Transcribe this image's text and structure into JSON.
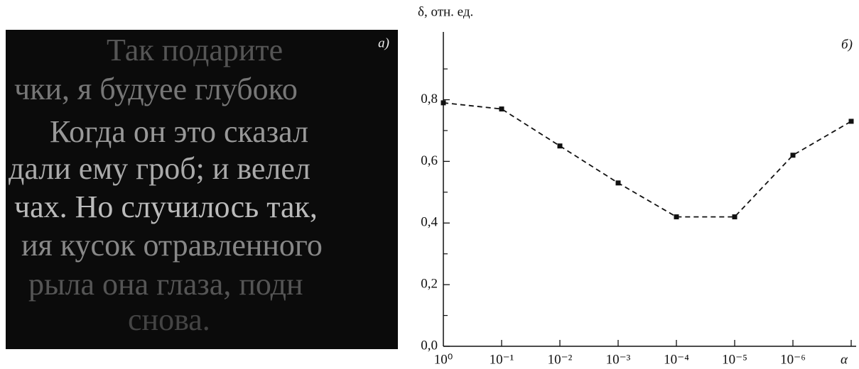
{
  "photo": {
    "label": "а)",
    "lines": [
      "Так подарите",
      "чки, я будуее глубоко",
      "Когда он это сказал",
      "дали ему гроб; и велел",
      "чах. Но случилось так,",
      "ия кусок отравленного",
      "рыла она глаза, подн",
      "снова."
    ]
  },
  "chart_data": {
    "type": "line",
    "ylabel": "δ, отн. ед.",
    "xlabel": "α",
    "panel_label": "б)",
    "categories": [
      "10⁰",
      "10⁻¹",
      "10⁻²",
      "10⁻³",
      "10⁻⁴",
      "10⁻⁵",
      "10⁻⁶",
      null
    ],
    "values": [
      0.79,
      0.77,
      0.65,
      0.53,
      0.42,
      0.42,
      0.62,
      0.73
    ],
    "color": "#111111",
    "dashed": true,
    "ylim": [
      0,
      1.02
    ],
    "yticks": [
      {
        "value": 0,
        "label": "0,0"
      },
      {
        "value": 0.2,
        "label": "0,2"
      },
      {
        "value": 0.4,
        "label": "0,4"
      },
      {
        "value": 0.6,
        "label": "0,6"
      },
      {
        "value": 0.8,
        "label": "0,8"
      }
    ],
    "yminorticks": [
      0.1,
      0.3,
      0.5,
      0.7,
      0.9
    ]
  }
}
